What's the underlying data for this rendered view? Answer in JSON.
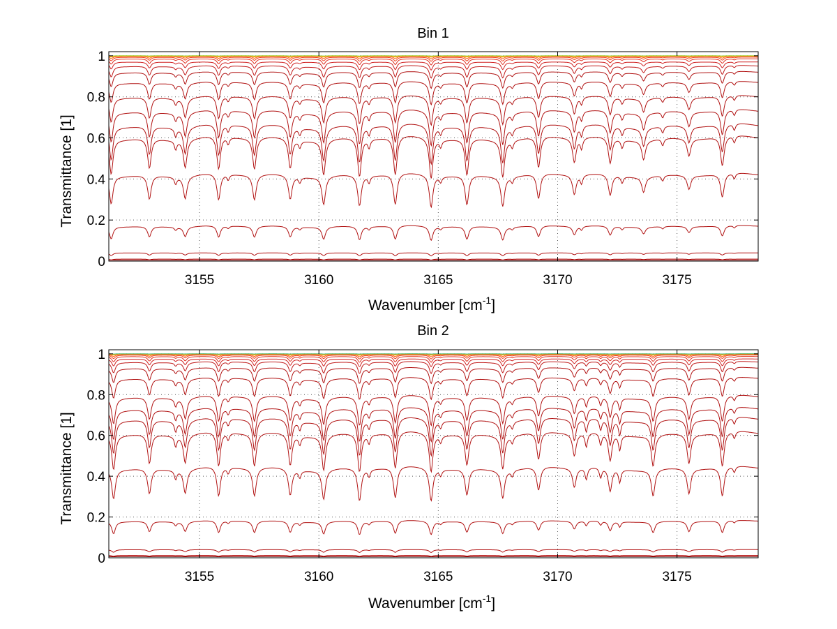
{
  "chart_data": [
    {
      "type": "line",
      "title": "Bin 1",
      "xlabel_main": "Wavenumber [cm",
      "xlabel_sup": "-1",
      "xlabel_end": "]",
      "ylabel": "Transmittance [1]",
      "xlim": [
        3151.2,
        3178.4
      ],
      "ylim": [
        0,
        1.02
      ],
      "xticks": [
        3155,
        3160,
        3165,
        3170,
        3175
      ],
      "xtick_labels": [
        "3155",
        "3160",
        "3165",
        "3170",
        "3175"
      ],
      "yticks": [
        0,
        0.2,
        0.4,
        0.6,
        0.8,
        1
      ],
      "ytick_labels": [
        "0",
        "0.2",
        "0.4",
        "0.6",
        "0.8",
        "1"
      ],
      "grid": "dotted",
      "lines": [
        {
          "x": 3151.3,
          "depth": 1.0
        },
        {
          "x": 3152.9,
          "depth": 0.85
        },
        {
          "x": 3154.4,
          "depth": 0.8
        },
        {
          "x": 3155.8,
          "depth": 0.95
        },
        {
          "x": 3157.3,
          "depth": 0.9
        },
        {
          "x": 3158.8,
          "depth": 0.85
        },
        {
          "x": 3160.2,
          "depth": 1.0
        },
        {
          "x": 3161.7,
          "depth": 1.1
        },
        {
          "x": 3163.2,
          "depth": 1.1
        },
        {
          "x": 3164.7,
          "depth": 1.15
        },
        {
          "x": 3166.2,
          "depth": 1.05
        },
        {
          "x": 3167.7,
          "depth": 1.05
        },
        {
          "x": 3169.2,
          "depth": 0.9
        },
        {
          "x": 3170.7,
          "depth": 0.7
        },
        {
          "x": 3172.2,
          "depth": 0.75
        },
        {
          "x": 3173.6,
          "depth": 0.55
        },
        {
          "x": 3175.5,
          "depth": 0.5
        },
        {
          "x": 3176.9,
          "depth": 0.85
        }
      ],
      "minor_lines": [
        {
          "x": 3154.0,
          "depth": 0.25
        },
        {
          "x": 3156.2,
          "depth": 0.2
        },
        {
          "x": 3159.2,
          "depth": 0.2
        },
        {
          "x": 3162.1,
          "depth": 0.25
        },
        {
          "x": 3165.1,
          "depth": 0.2
        },
        {
          "x": 3168.1,
          "depth": 0.2
        },
        {
          "x": 3171.0,
          "depth": 0.3
        },
        {
          "x": 3172.7,
          "depth": 0.25
        },
        {
          "x": 3174.4,
          "depth": 0.2
        },
        {
          "x": 3177.4,
          "depth": 0.2
        }
      ],
      "series": [
        {
          "base": 0.005,
          "amp": 0.0,
          "color": "#8B0000"
        },
        {
          "base": 0.01,
          "amp": 0.005,
          "color": "#B00000"
        },
        {
          "base": 0.04,
          "amp": 0.015,
          "color": "#B01010"
        },
        {
          "base": 0.17,
          "amp": 0.07,
          "color": "#B01010"
        },
        {
          "base": 0.42,
          "amp": 0.16,
          "color": "#B01010"
        },
        {
          "base": 0.6,
          "amp": 0.2,
          "color": "#B01010"
        },
        {
          "base": 0.66,
          "amp": 0.19,
          "color": "#B01010"
        },
        {
          "base": 0.73,
          "amp": 0.17,
          "color": "#B01010"
        },
        {
          "base": 0.8,
          "amp": 0.14,
          "color": "#B01010"
        },
        {
          "base": 0.87,
          "amp": 0.11,
          "color": "#B01010"
        },
        {
          "base": 0.92,
          "amp": 0.08,
          "color": "#B01010"
        },
        {
          "base": 0.95,
          "amp": 0.06,
          "color": "#C01818"
        },
        {
          "base": 0.97,
          "amp": 0.04,
          "color": "#D02020"
        },
        {
          "base": 0.985,
          "amp": 0.03,
          "color": "#E03020"
        },
        {
          "base": 0.993,
          "amp": 0.02,
          "color": "#F04020"
        },
        {
          "base": 0.997,
          "amp": 0.012,
          "color": "#FF6010"
        },
        {
          "base": 0.999,
          "amp": 0.006,
          "color": "#FF9000"
        },
        {
          "base": 1.0,
          "amp": 0.003,
          "color": "#FFC000"
        },
        {
          "base": 1.0,
          "amp": 0.001,
          "color": "#9ACD32"
        }
      ]
    },
    {
      "type": "line",
      "title": "Bin 2",
      "xlabel_main": "Wavenumber [cm",
      "xlabel_sup": "-1",
      "xlabel_end": "]",
      "ylabel": "Transmittance [1]",
      "xlim": [
        3151.2,
        3178.4
      ],
      "ylim": [
        0,
        1.02
      ],
      "xticks": [
        3155,
        3160,
        3165,
        3170,
        3175
      ],
      "xtick_labels": [
        "3155",
        "3160",
        "3165",
        "3170",
        "3175"
      ],
      "yticks": [
        0,
        0.2,
        0.4,
        0.6,
        0.8,
        1
      ],
      "ytick_labels": [
        "0",
        "0.2",
        "0.4",
        "0.6",
        "0.8",
        "1"
      ],
      "grid": "dotted",
      "lines": [
        {
          "x": 3151.4,
          "depth": 1.0
        },
        {
          "x": 3152.9,
          "depth": 0.85
        },
        {
          "x": 3154.4,
          "depth": 0.8
        },
        {
          "x": 3155.8,
          "depth": 1.0
        },
        {
          "x": 3157.3,
          "depth": 0.95
        },
        {
          "x": 3158.8,
          "depth": 0.9
        },
        {
          "x": 3160.2,
          "depth": 1.0
        },
        {
          "x": 3161.7,
          "depth": 1.1
        },
        {
          "x": 3163.2,
          "depth": 1.05
        },
        {
          "x": 3164.7,
          "depth": 1.1
        },
        {
          "x": 3166.2,
          "depth": 0.9
        },
        {
          "x": 3167.7,
          "depth": 0.95
        },
        {
          "x": 3169.2,
          "depth": 0.8
        },
        {
          "x": 3170.7,
          "depth": 0.65
        },
        {
          "x": 3172.2,
          "depth": 0.8
        },
        {
          "x": 3174.0,
          "depth": 0.9
        },
        {
          "x": 3175.5,
          "depth": 0.85
        },
        {
          "x": 3176.9,
          "depth": 1.0
        }
      ],
      "minor_lines": [
        {
          "x": 3154.0,
          "depth": 0.3
        },
        {
          "x": 3156.2,
          "depth": 0.2
        },
        {
          "x": 3159.2,
          "depth": 0.25
        },
        {
          "x": 3162.1,
          "depth": 0.25
        },
        {
          "x": 3165.1,
          "depth": 0.2
        },
        {
          "x": 3168.1,
          "depth": 0.2
        },
        {
          "x": 3171.2,
          "depth": 0.4
        },
        {
          "x": 3171.8,
          "depth": 0.35
        },
        {
          "x": 3172.6,
          "depth": 0.45
        },
        {
          "x": 3177.4,
          "depth": 0.2
        }
      ],
      "series": [
        {
          "base": 0.005,
          "amp": 0.0,
          "color": "#8B0000"
        },
        {
          "base": 0.012,
          "amp": 0.005,
          "color": "#B00000"
        },
        {
          "base": 0.04,
          "amp": 0.015,
          "color": "#B01010"
        },
        {
          "base": 0.18,
          "amp": 0.07,
          "color": "#B01010"
        },
        {
          "base": 0.44,
          "amp": 0.17,
          "color": "#B01010"
        },
        {
          "base": 0.61,
          "amp": 0.2,
          "color": "#B01010"
        },
        {
          "base": 0.68,
          "amp": 0.19,
          "color": "#B01010"
        },
        {
          "base": 0.73,
          "amp": 0.17,
          "color": "#B01010"
        },
        {
          "base": 0.79,
          "amp": 0.15,
          "color": "#B01010"
        },
        {
          "base": 0.88,
          "amp": 0.11,
          "color": "#B01010"
        },
        {
          "base": 0.93,
          "amp": 0.08,
          "color": "#B01010"
        },
        {
          "base": 0.96,
          "amp": 0.06,
          "color": "#C01818"
        },
        {
          "base": 0.975,
          "amp": 0.04,
          "color": "#D02020"
        },
        {
          "base": 0.987,
          "amp": 0.03,
          "color": "#E03020"
        },
        {
          "base": 0.994,
          "amp": 0.02,
          "color": "#F04020"
        },
        {
          "base": 0.997,
          "amp": 0.012,
          "color": "#FF6010"
        },
        {
          "base": 0.999,
          "amp": 0.006,
          "color": "#FF9000"
        },
        {
          "base": 1.0,
          "amp": 0.003,
          "color": "#FFC000"
        },
        {
          "base": 1.0,
          "amp": 0.001,
          "color": "#3CB371"
        }
      ]
    }
  ]
}
